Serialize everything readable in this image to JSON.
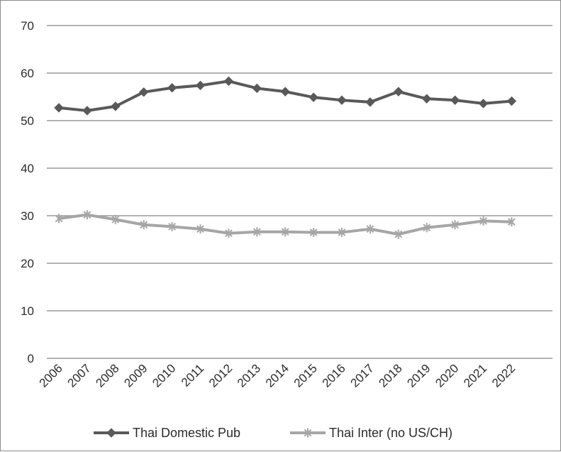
{
  "chart_data": {
    "type": "line",
    "title": "",
    "xlabel": "",
    "ylabel": "",
    "ylim": [
      0,
      70
    ],
    "yticks": [
      0,
      10,
      20,
      30,
      40,
      50,
      60,
      70
    ],
    "grid": true,
    "legend_position": "bottom",
    "categories": [
      "2006",
      "2007",
      "2008",
      "2009",
      "2010",
      "2011",
      "2012",
      "2013",
      "2014",
      "2015",
      "2016",
      "2017",
      "2018",
      "2019",
      "2020",
      "2021",
      "2022"
    ],
    "series": [
      {
        "name": "Thai Domestic Pub",
        "marker": "diamond",
        "color": "#595959",
        "values": [
          52.7,
          52.1,
          53.0,
          56.0,
          56.9,
          57.4,
          58.3,
          56.8,
          56.1,
          54.9,
          54.3,
          53.9,
          56.1,
          54.6,
          54.3,
          53.6,
          54.1
        ]
      },
      {
        "name": "Thai Inter (no US/CH)",
        "marker": "asterisk",
        "color": "#a6a6a6",
        "values": [
          29.4,
          30.2,
          29.2,
          28.1,
          27.7,
          27.2,
          26.3,
          26.6,
          26.6,
          26.5,
          26.5,
          27.2,
          26.1,
          27.5,
          28.1,
          28.9,
          28.7
        ]
      }
    ]
  }
}
